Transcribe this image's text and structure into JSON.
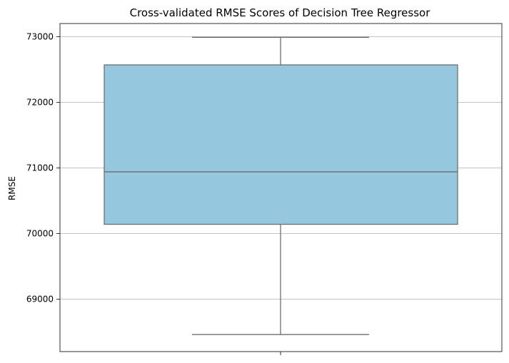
{
  "chart_data": {
    "type": "box",
    "title": "Cross-validated RMSE Scores of Decision Tree Regressor",
    "xlabel": "",
    "ylabel": "RMSE",
    "ylim": [
      68200,
      73200
    ],
    "yticks": [
      69000,
      70000,
      71000,
      72000,
      73000
    ],
    "grid": true,
    "box": {
      "whisker_low": 68460,
      "q1": 70140,
      "median": 70940,
      "q3": 72570,
      "whisker_high": 72990
    },
    "colors": {
      "box_fill": "#95c8de",
      "box_edge": "#6e6e6e",
      "grid": "#b0b0b0",
      "axes": "#000000"
    }
  }
}
